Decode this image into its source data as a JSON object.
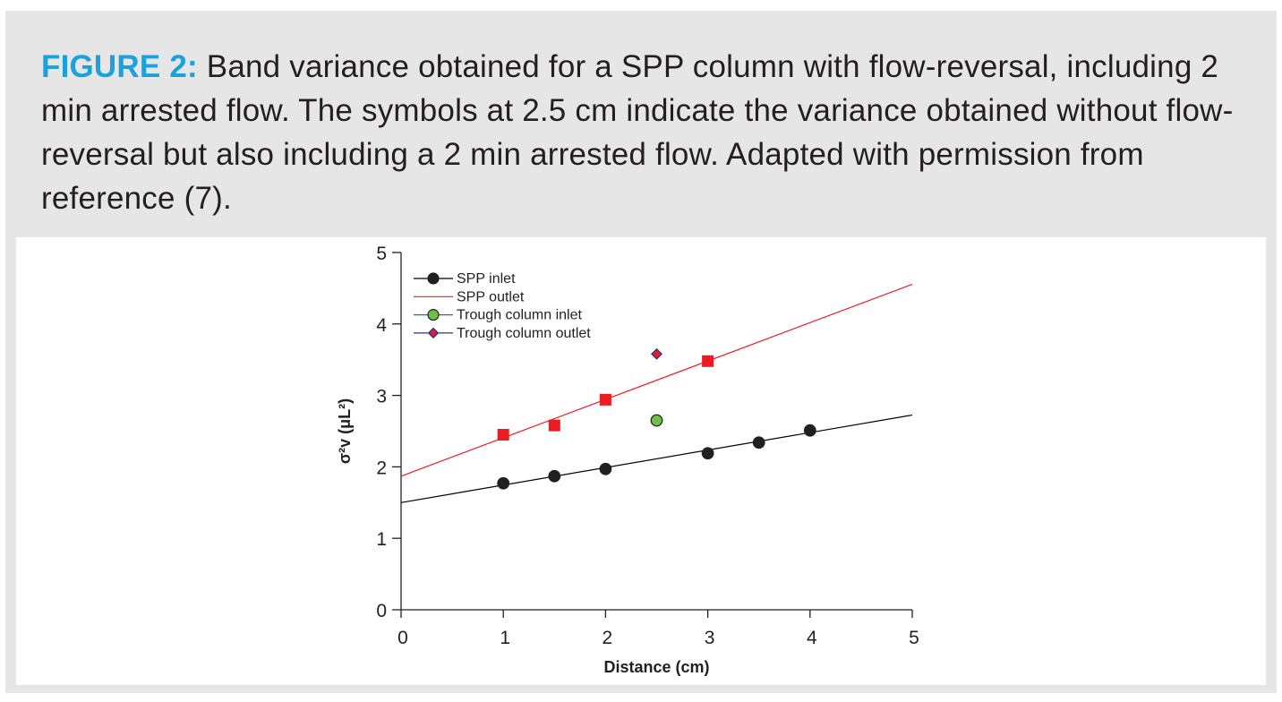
{
  "caption": {
    "label": "FIGURE 2:",
    "text": " Band variance obtained for a SPP column with flow-reversal, including 2 min arrested flow. The symbols at 2.5 cm indicate the variance obtained without flow-reversal but also including a 2 min arrested flow. Adapted with permission from reference (7)."
  },
  "chart_data": {
    "type": "scatter",
    "xlabel": "Distance (cm)",
    "ylabel": "σ²v (μL²)",
    "xlim": [
      0,
      5
    ],
    "ylim": [
      0,
      5
    ],
    "xticks": [
      0,
      1,
      2,
      3,
      4,
      5
    ],
    "yticks": [
      0,
      1,
      2,
      3,
      4,
      5
    ],
    "grid": false,
    "legend_position": "top-left",
    "series": [
      {
        "name": "SPP inlet",
        "marker": "circle",
        "color": "#231f20",
        "line_color": "#000000",
        "points": [
          {
            "x": 1.0,
            "y": 1.77
          },
          {
            "x": 1.5,
            "y": 1.87
          },
          {
            "x": 2.0,
            "y": 1.97
          },
          {
            "x": 3.0,
            "y": 2.19
          },
          {
            "x": 3.5,
            "y": 2.34
          },
          {
            "x": 4.0,
            "y": 2.51
          }
        ],
        "fit": {
          "intercept": 1.5,
          "slope": 0.245
        }
      },
      {
        "name": "SPP outlet",
        "marker": "square",
        "color": "#ed1c24",
        "line_color": "#ed1c24",
        "points": [
          {
            "x": 1.0,
            "y": 2.45
          },
          {
            "x": 1.5,
            "y": 2.58
          },
          {
            "x": 2.0,
            "y": 2.94
          },
          {
            "x": 3.0,
            "y": 3.48
          }
        ],
        "fit": {
          "intercept": 1.87,
          "slope": 0.537
        }
      },
      {
        "name": "Trough column inlet",
        "marker": "circle",
        "color": "#6cbf4a",
        "line_color": "#2e7d32",
        "points": [
          {
            "x": 2.5,
            "y": 2.65
          }
        ]
      },
      {
        "name": "Trough column outlet",
        "marker": "diamond",
        "color": "#ed1c24",
        "line_color": "#2e3192",
        "points": [
          {
            "x": 2.5,
            "y": 3.58
          }
        ]
      }
    ]
  }
}
